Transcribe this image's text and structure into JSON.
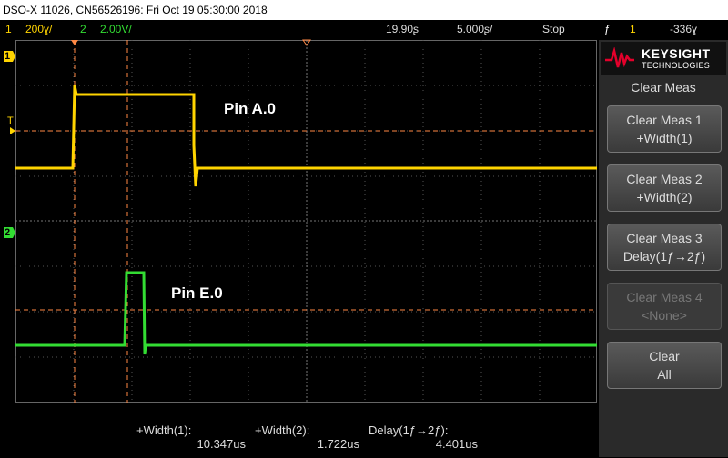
{
  "title_bar": "DSO-X 11026, CN56526196: Fri Oct 19 05:30:00 2018",
  "status": {
    "ch1_num": "1",
    "ch1_scale": "200ɣ/",
    "ch2_num": "2",
    "ch2_scale": "2.00V/",
    "horiz_pos": "19.90ʂ",
    "time_scale": "5.000ʂ/",
    "run_state": "Stop",
    "trig_icon": "ƒ",
    "trig_channel": "1",
    "trig_level": "-336ɣ"
  },
  "colors": {
    "ch1": "#ffd400",
    "ch2": "#33dd33",
    "cursor": "#ff8844"
  },
  "traces": {
    "ch1_label": "Pin A.0",
    "ch2_label": "Pin E.0"
  },
  "markers": {
    "ch1_marker": "1",
    "ch2_marker": "2",
    "trigger_marker": "T"
  },
  "brand": {
    "name": "KEYSIGHT",
    "sub": "TECHNOLOGIES"
  },
  "softkey_menu": {
    "title": "Clear Meas",
    "buttons": [
      {
        "line1": "Clear Meas 1",
        "line2": "+Width(1)"
      },
      {
        "line1": "Clear Meas 2",
        "line2": "+Width(2)"
      },
      {
        "line1": "Clear Meas 3",
        "line2": "Delay(1ƒ→2ƒ)"
      },
      {
        "line1": "Clear Meas 4",
        "line2": "<None>"
      },
      {
        "line1": "Clear",
        "line2": "All"
      }
    ]
  },
  "measurements": [
    {
      "name": "+Width(1):",
      "value": "10.347us"
    },
    {
      "name": "+Width(2):",
      "value": "1.722us"
    },
    {
      "name": "Delay(1ƒ→2ƒ):",
      "value": "4.401us"
    }
  ]
}
